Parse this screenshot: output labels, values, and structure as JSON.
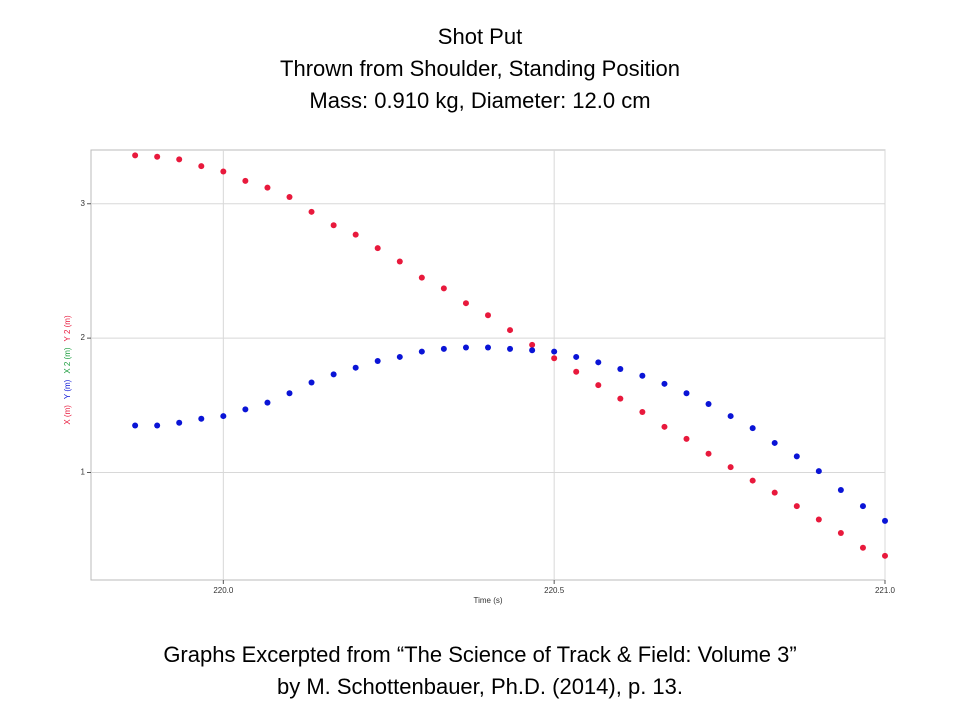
{
  "chart_data": {
    "type": "scatter",
    "title": "Shot Put",
    "subtitle": [
      "Thrown from Shoulder, Standing Position",
      "Mass: 0.910 kg, Diameter: 12.0 cm"
    ],
    "x_label": "Time (s)",
    "y_label_parts": [
      {
        "text": "X (m)",
        "color": "#e8193c"
      },
      {
        "text": "Y (m)",
        "color": "#0a14d6"
      },
      {
        "text": "X 2 (m)",
        "color": "#1a9c3c"
      },
      {
        "text": "Y 2 (m)",
        "color": "#e8193c"
      }
    ],
    "x": [
      219.8667,
      219.9,
      219.9333,
      219.9667,
      220.0,
      220.0333,
      220.0667,
      220.1,
      220.1333,
      220.1667,
      220.2,
      220.2333,
      220.2667,
      220.3,
      220.3333,
      220.3667,
      220.4,
      220.4333,
      220.4667,
      220.5,
      220.5333,
      220.5667,
      220.6,
      220.6333,
      220.6667,
      220.7,
      220.7333,
      220.7667,
      220.8,
      220.8333,
      220.8667,
      220.9,
      220.9333,
      220.9667,
      221.0
    ],
    "series": [
      {
        "name": "X (m)",
        "color": "#e8193c",
        "values": [
          3.36,
          3.35,
          3.33,
          3.28,
          3.24,
          3.17,
          3.12,
          3.05,
          2.94,
          2.84,
          2.77,
          2.67,
          2.57,
          2.45,
          2.37,
          2.26,
          2.17,
          2.06,
          1.95,
          1.85,
          1.75,
          1.65,
          1.55,
          1.45,
          1.34,
          1.25,
          1.14,
          1.04,
          0.94,
          0.85,
          0.75,
          0.65,
          0.55,
          0.44,
          0.38
        ]
      },
      {
        "name": "Y (m)",
        "color": "#0a14d6",
        "values": [
          1.35,
          1.35,
          1.37,
          1.4,
          1.42,
          1.47,
          1.52,
          1.59,
          1.67,
          1.73,
          1.78,
          1.83,
          1.86,
          1.9,
          1.92,
          1.93,
          1.93,
          1.92,
          1.91,
          1.9,
          1.86,
          1.82,
          1.77,
          1.72,
          1.66,
          1.59,
          1.51,
          1.42,
          1.33,
          1.22,
          1.12,
          1.01,
          0.87,
          0.75,
          0.64
        ]
      }
    ],
    "xlim": [
      219.8,
      221.0
    ],
    "ylim": [
      0.2,
      3.4
    ],
    "xticks": [
      {
        "value": 220,
        "label": "220.0"
      },
      {
        "value": 220.5,
        "label": "220.5"
      },
      {
        "value": 221,
        "label": "221.0"
      }
    ],
    "yticks": [
      1,
      2,
      3
    ],
    "grid": true
  },
  "footer": [
    "Graphs Excerpted from “The Science of Track & Field: Volume 3”",
    "by M. Schottenbauer, Ph.D. (2014), p. 13."
  ]
}
